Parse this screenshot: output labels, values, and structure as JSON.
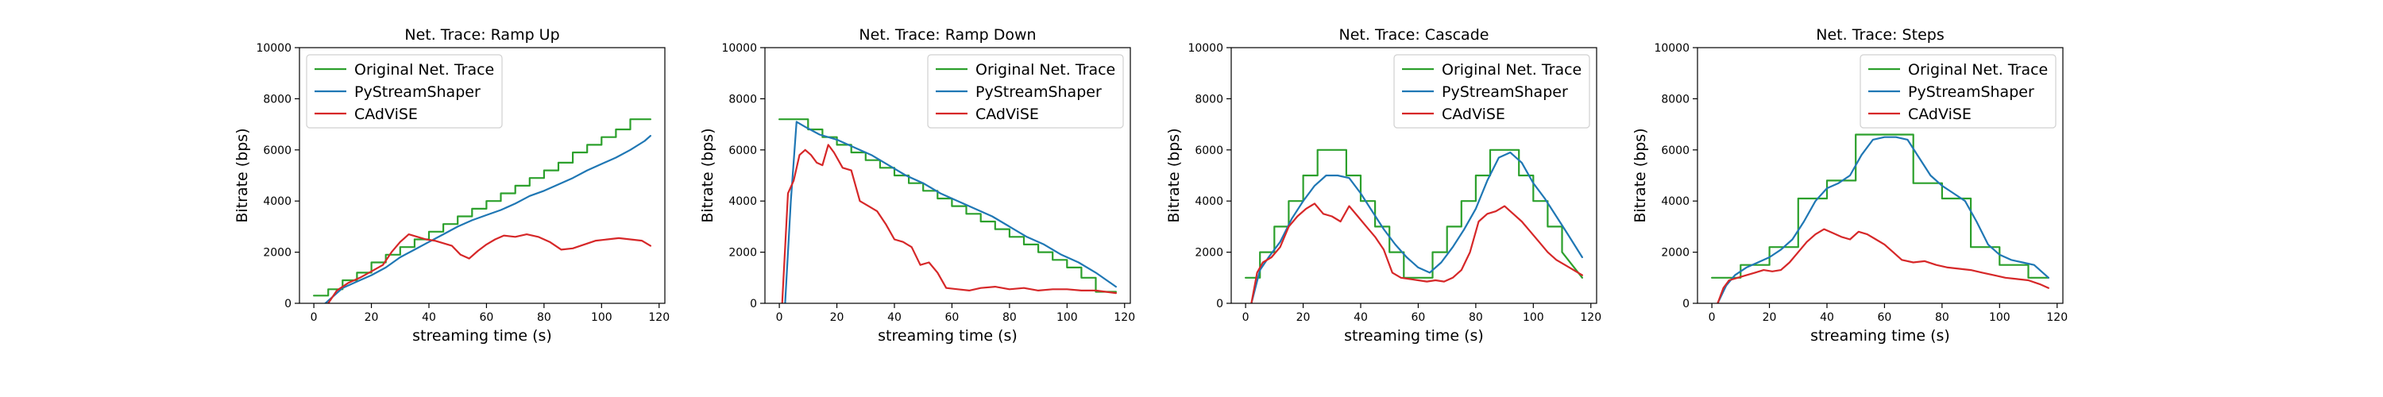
{
  "chart_data": [
    {
      "type": "line",
      "title": "Net. Trace: Ramp Up",
      "xlabel": "streaming time (s)",
      "ylabel": "Bitrate (bps)",
      "xlim": [
        -5,
        122
      ],
      "ylim": [
        0,
        10000
      ],
      "xticks": [
        0,
        20,
        40,
        60,
        80,
        100,
        120
      ],
      "yticks": [
        0,
        2000,
        4000,
        6000,
        8000,
        10000
      ],
      "legend": "top-left",
      "series": [
        {
          "name": "Original Net. Trace",
          "color": "#2ca02c",
          "x": [
            0,
            5,
            5,
            10,
            10,
            15,
            15,
            20,
            20,
            25,
            25,
            30,
            30,
            35,
            35,
            40,
            40,
            45,
            45,
            50,
            50,
            55,
            55,
            60,
            60,
            65,
            65,
            70,
            70,
            75,
            75,
            80,
            80,
            85,
            85,
            90,
            90,
            95,
            95,
            100,
            100,
            105,
            105,
            110,
            110,
            117
          ],
          "y": [
            300,
            300,
            550,
            550,
            900,
            900,
            1200,
            1200,
            1600,
            1600,
            1900,
            1900,
            2200,
            2200,
            2500,
            2500,
            2800,
            2800,
            3100,
            3100,
            3400,
            3400,
            3700,
            3700,
            4000,
            4000,
            4300,
            4300,
            4600,
            4600,
            4900,
            4900,
            5200,
            5200,
            5500,
            5500,
            5900,
            5900,
            6200,
            6200,
            6500,
            6500,
            6800,
            6800,
            7200,
            7200
          ]
        },
        {
          "name": "PyStreamShaper",
          "color": "#1f77b4",
          "x": [
            4,
            7,
            10,
            15,
            20,
            25,
            30,
            35,
            40,
            45,
            50,
            55,
            60,
            65,
            70,
            75,
            80,
            85,
            90,
            95,
            100,
            105,
            110,
            115,
            117
          ],
          "y": [
            0,
            300,
            600,
            850,
            1100,
            1400,
            1800,
            2100,
            2400,
            2700,
            3000,
            3250,
            3450,
            3650,
            3900,
            4200,
            4400,
            4650,
            4900,
            5200,
            5450,
            5700,
            6000,
            6350,
            6550
          ]
        },
        {
          "name": "CAdViSE",
          "color": "#d62728",
          "x": [
            5,
            8,
            12,
            16,
            20,
            24,
            27,
            30,
            33,
            36,
            39,
            42,
            45,
            48,
            51,
            54,
            57,
            60,
            63,
            66,
            70,
            74,
            78,
            82,
            86,
            90,
            94,
            98,
            102,
            106,
            110,
            114,
            117
          ],
          "y": [
            0,
            500,
            800,
            1000,
            1250,
            1500,
            2000,
            2400,
            2700,
            2600,
            2500,
            2450,
            2350,
            2250,
            1900,
            1750,
            2050,
            2300,
            2500,
            2650,
            2600,
            2700,
            2600,
            2400,
            2100,
            2150,
            2300,
            2450,
            2500,
            2550,
            2500,
            2450,
            2250
          ]
        }
      ]
    },
    {
      "type": "line",
      "title": "Net. Trace: Ramp Down",
      "xlabel": "streaming time (s)",
      "ylabel": "Bitrate (bps)",
      "xlim": [
        -5,
        122
      ],
      "ylim": [
        0,
        10000
      ],
      "xticks": [
        0,
        20,
        40,
        60,
        80,
        100,
        120
      ],
      "yticks": [
        0,
        2000,
        4000,
        6000,
        8000,
        10000
      ],
      "legend": "top-right",
      "series": [
        {
          "name": "Original Net. Trace",
          "color": "#2ca02c",
          "x": [
            0,
            10,
            10,
            15,
            15,
            20,
            20,
            25,
            25,
            30,
            30,
            35,
            35,
            40,
            40,
            45,
            45,
            50,
            50,
            55,
            55,
            60,
            60,
            65,
            65,
            70,
            70,
            75,
            75,
            80,
            80,
            85,
            85,
            90,
            90,
            95,
            95,
            100,
            100,
            105,
            105,
            110,
            110,
            117
          ],
          "y": [
            7200,
            7200,
            6800,
            6800,
            6500,
            6500,
            6200,
            6200,
            5900,
            5900,
            5600,
            5600,
            5300,
            5300,
            5000,
            5000,
            4700,
            4700,
            4400,
            4400,
            4100,
            4100,
            3800,
            3800,
            3500,
            3500,
            3200,
            3200,
            2900,
            2900,
            2600,
            2600,
            2300,
            2300,
            2000,
            2000,
            1700,
            1700,
            1400,
            1400,
            1000,
            1000,
            450,
            450
          ]
        },
        {
          "name": "PyStreamShaper",
          "color": "#1f77b4",
          "x": [
            2,
            4,
            6,
            9,
            14,
            20,
            26,
            32,
            38,
            44,
            50,
            56,
            62,
            68,
            74,
            80,
            86,
            92,
            98,
            104,
            110,
            117
          ],
          "y": [
            0,
            4000,
            7100,
            6900,
            6600,
            6400,
            6100,
            5800,
            5400,
            5000,
            4700,
            4300,
            4000,
            3700,
            3400,
            3000,
            2600,
            2300,
            1900,
            1600,
            1200,
            650
          ]
        },
        {
          "name": "CAdViSE",
          "color": "#d62728",
          "x": [
            1,
            3,
            5,
            7,
            9,
            11,
            13,
            15,
            17,
            19,
            22,
            25,
            28,
            31,
            34,
            37,
            40,
            43,
            46,
            49,
            52,
            55,
            58,
            62,
            66,
            70,
            75,
            80,
            85,
            90,
            95,
            100,
            105,
            110,
            117
          ],
          "y": [
            0,
            4300,
            4800,
            5800,
            6000,
            5800,
            5500,
            5400,
            6200,
            5900,
            5300,
            5200,
            4000,
            3800,
            3600,
            3100,
            2500,
            2400,
            2200,
            1500,
            1600,
            1200,
            600,
            550,
            500,
            600,
            650,
            550,
            600,
            500,
            550,
            550,
            500,
            500,
            400
          ]
        }
      ]
    },
    {
      "type": "line",
      "title": "Net. Trace: Cascade",
      "xlabel": "streaming time (s)",
      "ylabel": "Bitrate (bps)",
      "xlim": [
        -5,
        122
      ],
      "ylim": [
        0,
        10000
      ],
      "xticks": [
        0,
        20,
        40,
        60,
        80,
        100,
        120
      ],
      "yticks": [
        0,
        2000,
        4000,
        6000,
        8000,
        10000
      ],
      "legend": "top-right",
      "series": [
        {
          "name": "Original Net. Trace",
          "color": "#2ca02c",
          "x": [
            0,
            5,
            5,
            10,
            10,
            15,
            15,
            20,
            20,
            25,
            25,
            35,
            35,
            40,
            40,
            45,
            45,
            50,
            50,
            55,
            55,
            65,
            65,
            70,
            70,
            75,
            75,
            80,
            80,
            85,
            85,
            95,
            95,
            100,
            100,
            105,
            105,
            110,
            110,
            117
          ],
          "y": [
            1000,
            1000,
            2000,
            2000,
            3000,
            3000,
            4000,
            4000,
            5000,
            5000,
            6000,
            6000,
            5000,
            5000,
            4000,
            4000,
            3000,
            3000,
            2000,
            2000,
            1000,
            1000,
            2000,
            2000,
            3000,
            3000,
            4000,
            4000,
            5000,
            5000,
            6000,
            6000,
            5000,
            5000,
            4000,
            4000,
            3000,
            3000,
            2000,
            1000
          ]
        },
        {
          "name": "PyStreamShaper",
          "color": "#1f77b4",
          "x": [
            2,
            5,
            8,
            12,
            16,
            20,
            24,
            28,
            32,
            36,
            40,
            44,
            48,
            52,
            56,
            60,
            64,
            68,
            72,
            76,
            80,
            84,
            88,
            92,
            96,
            100,
            104,
            108,
            112,
            117
          ],
          "y": [
            0,
            1300,
            1800,
            2400,
            3300,
            4000,
            4600,
            5000,
            5000,
            4900,
            4300,
            3600,
            2900,
            2300,
            1800,
            1400,
            1200,
            1600,
            2200,
            2900,
            3700,
            4800,
            5700,
            5900,
            5500,
            4700,
            4100,
            3400,
            2700,
            1800
          ]
        },
        {
          "name": "CAdViSE",
          "color": "#d62728",
          "x": [
            2,
            4,
            6,
            9,
            12,
            15,
            18,
            21,
            24,
            27,
            30,
            33,
            36,
            39,
            42,
            45,
            48,
            51,
            54,
            57,
            60,
            63,
            66,
            69,
            72,
            75,
            78,
            81,
            84,
            87,
            90,
            93,
            96,
            99,
            102,
            105,
            108,
            111,
            114,
            117
          ],
          "y": [
            0,
            1200,
            1600,
            1800,
            2200,
            3000,
            3400,
            3700,
            3900,
            3500,
            3400,
            3200,
            3800,
            3400,
            3000,
            2600,
            2100,
            1200,
            1000,
            950,
            900,
            850,
            900,
            850,
            1000,
            1300,
            2000,
            3200,
            3500,
            3600,
            3800,
            3500,
            3200,
            2800,
            2400,
            2000,
            1700,
            1500,
            1300,
            1100
          ]
        }
      ]
    },
    {
      "type": "line",
      "title": "Net. Trace: Steps",
      "xlabel": "streaming time (s)",
      "ylabel": "Bitrate (bps)",
      "xlim": [
        -5,
        122
      ],
      "ylim": [
        0,
        10000
      ],
      "xticks": [
        0,
        20,
        40,
        60,
        80,
        100,
        120
      ],
      "yticks": [
        0,
        2000,
        4000,
        6000,
        8000,
        10000
      ],
      "legend": "top-right",
      "series": [
        {
          "name": "Original Net. Trace",
          "color": "#2ca02c",
          "x": [
            0,
            10,
            10,
            20,
            20,
            30,
            30,
            40,
            40,
            50,
            50,
            70,
            70,
            80,
            80,
            90,
            90,
            100,
            100,
            110,
            110,
            117
          ],
          "y": [
            1000,
            1000,
            1500,
            1500,
            2200,
            2200,
            4100,
            4100,
            4800,
            4800,
            6600,
            6600,
            4700,
            4700,
            4100,
            4100,
            2200,
            2200,
            1500,
            1500,
            1000,
            1000
          ]
        },
        {
          "name": "PyStreamShaper",
          "color": "#1f77b4",
          "x": [
            2,
            5,
            8,
            12,
            16,
            20,
            24,
            28,
            32,
            36,
            40,
            44,
            48,
            52,
            56,
            60,
            64,
            68,
            72,
            76,
            80,
            84,
            88,
            92,
            96,
            100,
            104,
            108,
            112,
            117
          ],
          "y": [
            0,
            700,
            1100,
            1400,
            1600,
            1800,
            2100,
            2500,
            3200,
            4000,
            4500,
            4700,
            5000,
            5800,
            6400,
            6500,
            6500,
            6400,
            5700,
            5000,
            4600,
            4300,
            4000,
            3200,
            2300,
            1900,
            1700,
            1600,
            1500,
            1000
          ]
        },
        {
          "name": "CAdViSE",
          "color": "#d62728",
          "x": [
            2,
            4,
            6,
            9,
            12,
            15,
            18,
            21,
            24,
            27,
            30,
            33,
            36,
            39,
            42,
            45,
            48,
            51,
            54,
            57,
            60,
            63,
            66,
            70,
            74,
            78,
            82,
            86,
            90,
            94,
            98,
            102,
            106,
            110,
            114,
            117
          ],
          "y": [
            0,
            600,
            900,
            1000,
            1100,
            1200,
            1300,
            1250,
            1300,
            1600,
            2000,
            2400,
            2700,
            2900,
            2750,
            2600,
            2500,
            2800,
            2700,
            2500,
            2300,
            2000,
            1700,
            1600,
            1650,
            1500,
            1400,
            1350,
            1300,
            1200,
            1100,
            1000,
            950,
            900,
            750,
            600
          ]
        }
      ]
    }
  ]
}
